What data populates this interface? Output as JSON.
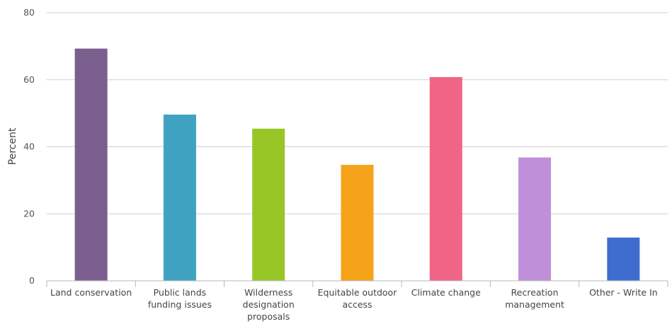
{
  "chart_data": {
    "type": "bar",
    "title": "",
    "xlabel": "",
    "ylabel": "Percent",
    "ylim": [
      0,
      80
    ],
    "yticks": [
      0,
      20,
      40,
      60,
      80
    ],
    "grid": true,
    "legend": "none",
    "categories": [
      [
        "Land conservation"
      ],
      [
        "Public lands",
        "funding issues"
      ],
      [
        "Wilderness",
        "designation",
        "proposals"
      ],
      [
        "Equitable outdoor",
        "access"
      ],
      [
        "Climate change"
      ],
      [
        "Recreation",
        "management"
      ],
      [
        "Other - Write In"
      ]
    ],
    "values": [
      69.3,
      49.6,
      45.4,
      34.6,
      60.8,
      36.8,
      12.9
    ],
    "colors": [
      "#7a5f8e",
      "#3fa2c1",
      "#98c626",
      "#f5a31a",
      "#f06586",
      "#bf8fd9",
      "#3e6dcf"
    ]
  }
}
